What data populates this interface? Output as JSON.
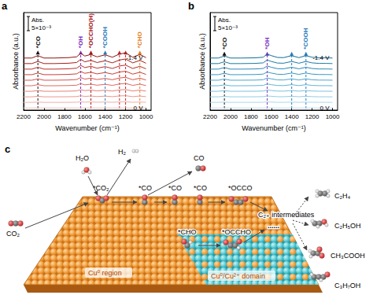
{
  "chart_data": [
    {
      "type": "line",
      "title": "a",
      "x_label": "Wavenumber (cm⁻¹)",
      "y_label": "Absorbance (a.u.)",
      "x": [
        2200,
        2120,
        2060,
        2000,
        1900,
        1760,
        1680,
        1640,
        1600,
        1540,
        1480,
        1400,
        1330,
        1260,
        1200,
        1130,
        1060,
        1000
      ],
      "series": [
        {
          "color": "#f6c4bd",
          "label": "0 V",
          "values": [
            1,
            1,
            1,
            1,
            1,
            1,
            1,
            1,
            1,
            1,
            1,
            1,
            1,
            1,
            1,
            1,
            1,
            1
          ]
        },
        {
          "color": "#f2aea5",
          "values": [
            3.5,
            3.5,
            3.62,
            3.5,
            3.5,
            3.52,
            3.56,
            3.74,
            3.6,
            3.68,
            3.56,
            3.66,
            3.54,
            3.7,
            3.76,
            3.54,
            3.68,
            3.52
          ]
        },
        {
          "color": "#ec978d",
          "values": [
            6,
            6,
            6.24,
            6,
            6,
            6.04,
            6.12,
            6.48,
            6.2,
            6.36,
            6.12,
            6.32,
            6.08,
            6.4,
            6.52,
            6.08,
            6.36,
            6.04
          ]
        },
        {
          "color": "#e68076",
          "values": [
            8.5,
            8.5,
            8.86,
            8.5,
            8.5,
            8.56,
            8.68,
            9.22,
            8.8,
            9.04,
            8.68,
            8.98,
            8.62,
            9.1,
            9.28,
            8.62,
            9.04,
            8.56
          ]
        },
        {
          "color": "#df6a60",
          "values": [
            11,
            11,
            11.48,
            11,
            11,
            11.08,
            11.24,
            11.96,
            11.4,
            11.72,
            11.24,
            11.64,
            11.16,
            11.8,
            12.04,
            11.16,
            11.72,
            11.08
          ]
        },
        {
          "color": "#d6544b",
          "values": [
            13.5,
            13.5,
            14.1,
            13.5,
            13.5,
            13.6,
            13.8,
            14.7,
            14,
            14.4,
            13.8,
            14.3,
            13.7,
            14.5,
            14.8,
            13.7,
            14.4,
            13.6
          ]
        },
        {
          "color": "#c94038",
          "values": [
            16,
            16,
            16.72,
            16,
            16,
            16.12,
            16.36,
            17.44,
            16.6,
            17.08,
            16.36,
            16.96,
            16.24,
            17.2,
            17.56,
            16.24,
            17.08,
            16.12
          ]
        },
        {
          "color": "#b92e28",
          "values": [
            18.5,
            18.5,
            19.34,
            18.5,
            18.5,
            18.64,
            18.92,
            20.18,
            19.2,
            19.76,
            18.92,
            19.62,
            18.78,
            19.9,
            20.32,
            18.78,
            19.76,
            18.64
          ]
        },
        {
          "color": "#a61f1b",
          "values": [
            21,
            21,
            21.96,
            21,
            21,
            21.16,
            21.48,
            22.92,
            21.8,
            22.44,
            21.48,
            22.28,
            21.32,
            22.6,
            23.08,
            21.32,
            22.44,
            21.16
          ]
        },
        {
          "color": "#8e1412",
          "label": "-1.4 V",
          "values": [
            23.5,
            23.5,
            24.58,
            23.5,
            23.5,
            23.68,
            24.04,
            25.66,
            24.4,
            25.12,
            24.04,
            24.94,
            23.86,
            25.3,
            25.84,
            23.86,
            25.12,
            23.68
          ]
        }
      ],
      "xlim": [
        2200,
        950
      ],
      "xticks": [
        2200,
        2000,
        1800,
        1600,
        1400,
        1200,
        1000
      ],
      "ylim": [
        0,
        44
      ],
      "yticks": [],
      "tick_labels": "x",
      "grid": false,
      "annotations": [
        {
          "x": 2060,
          "text": "*CO",
          "color": "#111111"
        },
        {
          "x": 1640,
          "text": "*OH",
          "color": "#7b2fbf"
        },
        {
          "x": 1540,
          "text": "*OCCHO(H)",
          "color": "#a3141a"
        },
        {
          "x": 1400,
          "text": "*COOH",
          "color": "#2a7ab9"
        },
        {
          "x": 1260,
          "color": "#c0262b"
        },
        {
          "x": 1200,
          "color": "#c0262b"
        },
        {
          "x": 1060,
          "text": "*CHO",
          "color": "#e67e22"
        }
      ],
      "scale_label": [
        "Abs.",
        "5×10⁻³"
      ]
    },
    {
      "type": "line",
      "title": "b",
      "x_label": "Wavenumber (cm⁻¹)",
      "y_label": "Absorbance (a.u.)",
      "x": [
        2200,
        2120,
        2060,
        2000,
        1900,
        1760,
        1680,
        1640,
        1600,
        1540,
        1480,
        1400,
        1330,
        1260,
        1200,
        1130,
        1060,
        1000
      ],
      "series": [
        {
          "color": "#bfe3f2",
          "label": "0 V",
          "values": [
            1,
            1,
            1,
            1,
            1,
            1,
            1,
            1,
            1,
            1,
            1,
            1,
            1,
            1,
            1,
            1,
            1,
            1
          ]
        },
        {
          "color": "#a9d8ec",
          "values": [
            3.5,
            3.5,
            3.6,
            3.5,
            3.5,
            3.51,
            3.54,
            3.7,
            3.62,
            3.53,
            3.52,
            3.62,
            3.52,
            3.62,
            3.54,
            3.51,
            3.51,
            3.5
          ]
        },
        {
          "color": "#92cde6",
          "values": [
            6,
            6,
            6.2,
            6,
            6,
            6.02,
            6.08,
            6.4,
            6.24,
            6.06,
            6.04,
            6.24,
            6.04,
            6.24,
            6.08,
            6.02,
            6.02,
            6
          ]
        },
        {
          "color": "#7bc1e0",
          "values": [
            8.5,
            8.5,
            8.8,
            8.5,
            8.5,
            8.53,
            8.62,
            9.1,
            8.86,
            8.59,
            8.56,
            8.86,
            8.56,
            8.86,
            8.62,
            8.53,
            8.53,
            8.5
          ]
        },
        {
          "color": "#63b4d8",
          "values": [
            11,
            11,
            11.4,
            11,
            11,
            11.04,
            11.16,
            11.8,
            11.48,
            11.12,
            11.08,
            11.48,
            11.08,
            11.48,
            11.16,
            11.04,
            11.04,
            11
          ]
        },
        {
          "color": "#4ca7cf",
          "values": [
            13.5,
            13.5,
            14,
            13.5,
            13.5,
            13.55,
            13.7,
            14.5,
            14.1,
            13.65,
            13.6,
            14.1,
            13.6,
            14.1,
            13.7,
            13.55,
            13.55,
            13.5
          ]
        },
        {
          "color": "#3899c4",
          "values": [
            16,
            16,
            16.6,
            16,
            16,
            16.06,
            16.24,
            17.2,
            16.72,
            16.18,
            16.12,
            16.72,
            16.12,
            16.72,
            16.24,
            16.06,
            16.06,
            16
          ]
        },
        {
          "color": "#288ab7",
          "values": [
            18.5,
            18.5,
            19.2,
            18.5,
            18.5,
            18.57,
            18.78,
            19.9,
            19.34,
            18.71,
            18.64,
            19.34,
            18.64,
            19.34,
            18.78,
            18.57,
            18.57,
            18.5
          ]
        },
        {
          "color": "#1b7ba8",
          "values": [
            21,
            21,
            21.8,
            21,
            21,
            21.08,
            21.32,
            22.6,
            21.96,
            21.24,
            21.16,
            21.96,
            21.16,
            21.96,
            21.32,
            21.08,
            21.08,
            21
          ]
        },
        {
          "color": "#116d98",
          "label": "-1.4 V",
          "values": [
            23.5,
            23.5,
            24.4,
            23.5,
            23.5,
            23.59,
            23.86,
            25.3,
            24.58,
            23.77,
            23.68,
            24.58,
            23.68,
            24.58,
            23.86,
            23.59,
            23.59,
            23.5
          ]
        }
      ],
      "xlim": [
        2200,
        950
      ],
      "xticks": [
        2200,
        2000,
        1800,
        1600,
        1400,
        1200,
        1000
      ],
      "ylim": [
        0,
        44
      ],
      "yticks": [],
      "tick_labels": "x",
      "grid": false,
      "annotations": [
        {
          "x": 2060,
          "text": "*CO",
          "color": "#111111"
        },
        {
          "x": 1640,
          "text": "*OH",
          "color": "#7b2fbf"
        },
        {
          "x": 1400,
          "color": "#2a7ab9"
        },
        {
          "x": 1260,
          "text": "*COOH",
          "color": "#2a7ab9"
        }
      ],
      "scale_label": [
        "Abs.",
        "5×10⁻³"
      ]
    }
  ],
  "diagram": {
    "label": "c",
    "species": [
      "CO₂",
      "H₂O",
      "H₂",
      "CO",
      "*CO₂",
      "*CO",
      "*CO",
      "*CO",
      "*OCCO",
      "*CHO",
      "*OCCHO",
      "......",
      "C₂₊ intermediates"
    ],
    "regions": [
      "Cu⁰ region",
      "Cu⁰/Cu²⁺ domain"
    ],
    "products": [
      "C₂H₄",
      "C₂H₅OH",
      "CH₃COOH",
      "C₃H₇OH"
    ]
  }
}
